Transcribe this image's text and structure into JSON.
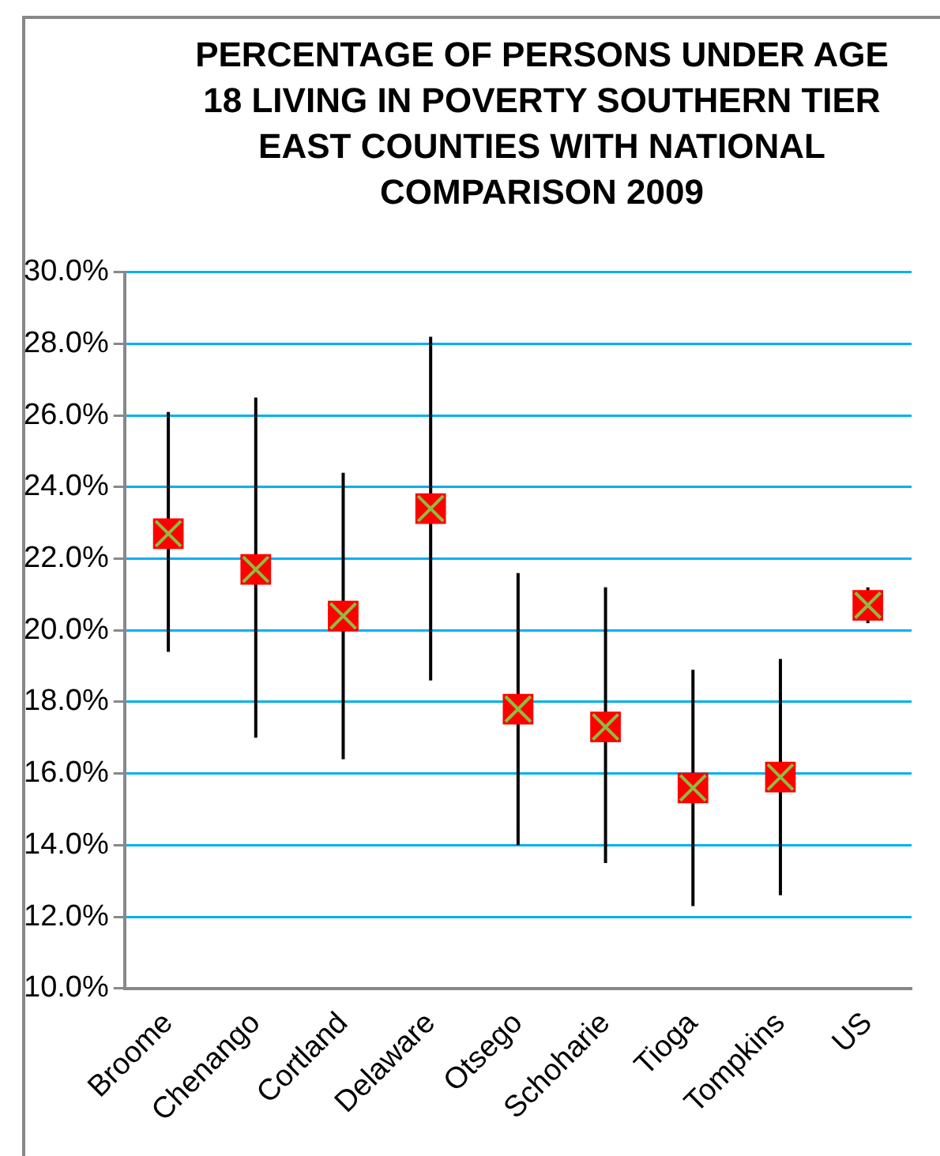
{
  "chart_data": {
    "type": "scatter",
    "title": "PERCENTAGE OF PERSONS UNDER AGE 18 LIVING IN POVERTY SOUTHERN TIER EAST COUNTIES WITH NATIONAL COMPARISON 2009",
    "categories": [
      "Broome",
      "Chenango",
      "Cortland",
      "Delaware",
      "Otsego",
      "Schoharie",
      "Tioga",
      "Tompkins",
      "US"
    ],
    "series": [
      {
        "color": "#ff0000",
        "values": [
          22.7,
          21.7,
          20.4,
          23.4,
          17.8,
          17.3,
          15.6,
          15.9,
          20.7
        ],
        "errors": [
          [
            19.4,
            26.1
          ],
          [
            17.0,
            26.5
          ],
          [
            16.4,
            24.4
          ],
          [
            18.6,
            28.2
          ],
          [
            14.0,
            21.6
          ],
          [
            13.5,
            21.2
          ],
          [
            12.3,
            18.9
          ],
          [
            12.6,
            19.2
          ],
          [
            20.2,
            21.2
          ]
        ]
      }
    ],
    "ylim": [
      10,
      30
    ],
    "yticks": [
      {
        "value": 10,
        "label": "10.0%"
      },
      {
        "value": 12,
        "label": "12.0%"
      },
      {
        "value": 14,
        "label": "14.0%"
      },
      {
        "value": 16,
        "label": "16.0%"
      },
      {
        "value": 18,
        "label": "18.0%"
      },
      {
        "value": 20,
        "label": "20.0%"
      },
      {
        "value": 22,
        "label": "22.0%"
      },
      {
        "value": 24,
        "label": "24.0%"
      },
      {
        "value": 26,
        "label": "26.0%"
      },
      {
        "value": 28,
        "label": "28.0%"
      },
      {
        "value": 30,
        "label": "30.0%"
      }
    ],
    "grid": "y",
    "legend": false,
    "marker": "square"
  }
}
